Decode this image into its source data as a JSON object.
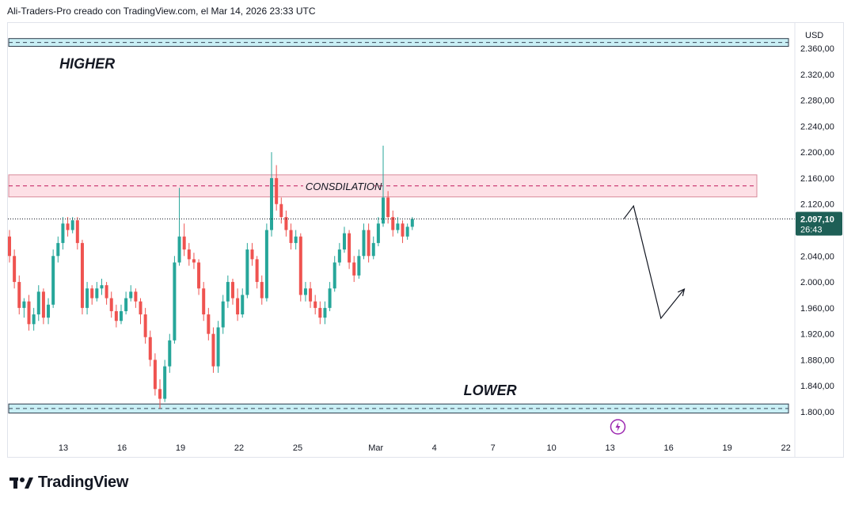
{
  "header": {
    "text": "Ali-Traders-Pro creado con TradingView.com, el Mar 14, 2026 23:33 UTC"
  },
  "footer": {
    "brand": "TradingView"
  },
  "colors": {
    "up": "#26a69a",
    "down": "#ef5350",
    "zone_cyan_fill": "#c9eff5",
    "zone_cyan_border": "#2b3a4a",
    "zone_pink_fill": "#fde0e6",
    "zone_pink_border": "#c2185b",
    "price_tag": "#1e5f56",
    "event_icon": "#9c27b0"
  },
  "chart_data": {
    "type": "candlestick",
    "currency": "USD",
    "ylim": [
      1780,
      2400
    ],
    "y_ticks": [
      "2.360,00",
      "2.320,00",
      "2.280,00",
      "2.240,00",
      "2.200,00",
      "2.160,00",
      "2.120,00",
      "2.080,00",
      "2.040,00",
      "2.000,00",
      "1.960,00",
      "1.920,00",
      "1.880,00",
      "1.840,00",
      "1.800,00"
    ],
    "y_tick_values": [
      2360,
      2320,
      2280,
      2240,
      2200,
      2160,
      2120,
      2080,
      2040,
      2000,
      1960,
      1920,
      1880,
      1840,
      1800
    ],
    "x_ticks": [
      {
        "label": "13",
        "day": 13
      },
      {
        "label": "16",
        "day": 16
      },
      {
        "label": "19",
        "day": 19
      },
      {
        "label": "22",
        "day": 22
      },
      {
        "label": "25",
        "day": 25
      },
      {
        "label": "Mar",
        "day": 29
      },
      {
        "label": "4",
        "day": 32
      },
      {
        "label": "7",
        "day": 35
      },
      {
        "label": "10",
        "day": 38
      },
      {
        "label": "13",
        "day": 41
      },
      {
        "label": "16",
        "day": 44
      },
      {
        "label": "19",
        "day": 47
      },
      {
        "label": "22",
        "day": 50
      }
    ],
    "last_price": {
      "label": "2.097,10",
      "countdown": "26:43",
      "value": 2097.1
    },
    "zones": [
      {
        "name": "higher-zone",
        "top": 2375,
        "bottom": 2363,
        "label": "HIGHER",
        "label_price": 2335,
        "label_day": 12.8
      },
      {
        "name": "consolidation-zone",
        "top": 2165,
        "bottom": 2131,
        "label": "CONSDILATION",
        "label_price": 2148,
        "label_day": 25.4
      },
      {
        "name": "lower-zone",
        "top": 1812,
        "bottom": 1798,
        "label": "LOWER",
        "label_price": 1832,
        "label_day": 33.5
      }
    ],
    "projection": [
      {
        "day": 41.7,
        "price": 2097
      },
      {
        "day": 42.2,
        "price": 2117
      },
      {
        "day": 43.6,
        "price": 1944
      },
      {
        "day": 44.8,
        "price": 1989
      }
    ],
    "event_marker_day": 41.6,
    "candles": [
      [
        2070,
        2040,
        2080,
        2030
      ],
      [
        2040,
        2000,
        2050,
        1990
      ],
      [
        2000,
        1960,
        2010,
        1950
      ],
      [
        1960,
        1970,
        1975,
        1945
      ],
      [
        1970,
        1935,
        1980,
        1925
      ],
      [
        1935,
        1950,
        1960,
        1925
      ],
      [
        1950,
        1985,
        1995,
        1940
      ],
      [
        1985,
        1945,
        1990,
        1935
      ],
      [
        1945,
        1965,
        1975,
        1935
      ],
      [
        1965,
        2040,
        2050,
        1960
      ],
      [
        2040,
        2060,
        2070,
        2030
      ],
      [
        2060,
        2090,
        2100,
        2050
      ],
      [
        2090,
        2080,
        2100,
        2070
      ],
      [
        2080,
        2095,
        2100,
        2075
      ],
      [
        2095,
        2060,
        2100,
        2050
      ],
      [
        2060,
        1960,
        2065,
        1950
      ],
      [
        1960,
        1990,
        2000,
        1950
      ],
      [
        1990,
        1975,
        1995,
        1965
      ],
      [
        1975,
        1990,
        2000,
        1970
      ],
      [
        1990,
        1995,
        2005,
        1980
      ],
      [
        1995,
        1975,
        2000,
        1965
      ],
      [
        1975,
        1955,
        1985,
        1945
      ],
      [
        1955,
        1940,
        1965,
        1930
      ],
      [
        1940,
        1955,
        1965,
        1935
      ],
      [
        1955,
        1975,
        1985,
        1950
      ],
      [
        1975,
        1985,
        1995,
        1970
      ],
      [
        1985,
        1970,
        1990,
        1960
      ],
      [
        1970,
        1950,
        1975,
        1935
      ],
      [
        1950,
        1915,
        1960,
        1905
      ],
      [
        1915,
        1880,
        1925,
        1870
      ],
      [
        1880,
        1835,
        1890,
        1825
      ],
      [
        1835,
        1820,
        1850,
        1805
      ],
      [
        1820,
        1870,
        1880,
        1815
      ],
      [
        1870,
        1910,
        1920,
        1860
      ],
      [
        1910,
        2030,
        2040,
        1905
      ],
      [
        2030,
        2070,
        2145,
        2025
      ],
      [
        2070,
        2050,
        2090,
        2040
      ],
      [
        2050,
        2035,
        2060,
        2025
      ],
      [
        2035,
        2030,
        2045,
        2020
      ],
      [
        2030,
        1990,
        2035,
        1980
      ],
      [
        1990,
        1950,
        2000,
        1940
      ],
      [
        1950,
        1920,
        1960,
        1910
      ],
      [
        1920,
        1870,
        1930,
        1860
      ],
      [
        1870,
        1930,
        1940,
        1860
      ],
      [
        1930,
        1970,
        1980,
        1920
      ],
      [
        1970,
        2000,
        2010,
        1960
      ],
      [
        2000,
        1975,
        2005,
        1965
      ],
      [
        1975,
        1950,
        1990,
        1940
      ],
      [
        1950,
        1980,
        1990,
        1945
      ],
      [
        1980,
        2050,
        2060,
        1975
      ],
      [
        2050,
        2035,
        2060,
        2025
      ],
      [
        2035,
        2000,
        2040,
        1990
      ],
      [
        2000,
        1975,
        2010,
        1965
      ],
      [
        1975,
        2080,
        2090,
        1970
      ],
      [
        2080,
        2160,
        2200,
        2070
      ],
      [
        2160,
        2120,
        2180,
        2110
      ],
      [
        2120,
        2100,
        2130,
        2090
      ],
      [
        2100,
        2080,
        2110,
        2070
      ],
      [
        2080,
        2060,
        2090,
        2050
      ],
      [
        2060,
        2070,
        2080,
        2050
      ],
      [
        2070,
        1980,
        2075,
        1970
      ],
      [
        1980,
        1990,
        2000,
        1970
      ],
      [
        1990,
        1970,
        2000,
        1960
      ],
      [
        1970,
        1960,
        1980,
        1950
      ],
      [
        1960,
        1945,
        1970,
        1935
      ],
      [
        1945,
        1960,
        1970,
        1935
      ],
      [
        1960,
        1990,
        2000,
        1955
      ],
      [
        1990,
        2030,
        2040,
        1985
      ],
      [
        2030,
        2050,
        2060,
        2025
      ],
      [
        2050,
        2075,
        2085,
        2045
      ],
      [
        2075,
        2030,
        2080,
        2020
      ],
      [
        2030,
        2010,
        2040,
        2000
      ],
      [
        2010,
        2040,
        2050,
        2005
      ],
      [
        2040,
        2080,
        2090,
        2035
      ],
      [
        2080,
        2040,
        2090,
        2030
      ],
      [
        2040,
        2060,
        2070,
        2035
      ],
      [
        2060,
        2090,
        2100,
        2055
      ],
      [
        2090,
        2130,
        2210,
        2085
      ],
      [
        2130,
        2100,
        2140,
        2090
      ],
      [
        2100,
        2080,
        2110,
        2070
      ],
      [
        2080,
        2090,
        2100,
        2075
      ],
      [
        2090,
        2070,
        2095,
        2060
      ],
      [
        2070,
        2085,
        2090,
        2065
      ],
      [
        2085,
        2097,
        2100,
        2080
      ]
    ]
  }
}
